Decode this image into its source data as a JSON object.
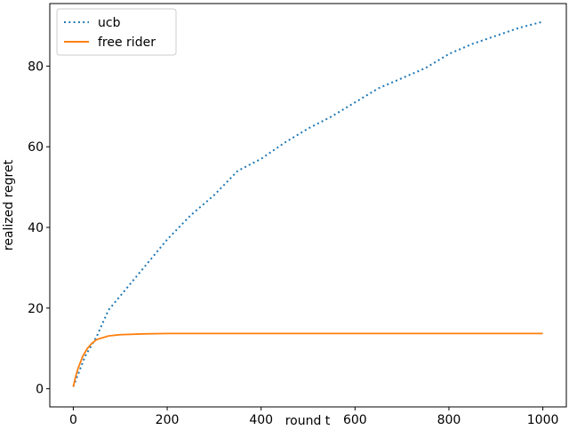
{
  "chart_data": {
    "type": "line",
    "xlabel": "round t",
    "ylabel": "realized regret",
    "xlim": [
      -50,
      1050
    ],
    "ylim": [
      -4.5,
      95.5
    ],
    "xticks": [
      0,
      200,
      400,
      600,
      800,
      1000
    ],
    "yticks": [
      0,
      20,
      40,
      60,
      80
    ],
    "legend": "upper left",
    "series": [
      {
        "name": "ucb",
        "color": "#1f77b4",
        "style": "dotted",
        "x": [
          0,
          25,
          50,
          75,
          100,
          150,
          200,
          250,
          300,
          350,
          400,
          450,
          500,
          550,
          600,
          650,
          700,
          750,
          800,
          850,
          900,
          950,
          1000
        ],
        "values": [
          0.5,
          8,
          13,
          19.5,
          23,
          30,
          37,
          43,
          48,
          54,
          57,
          61,
          64.5,
          67.5,
          71,
          74.5,
          77,
          79.5,
          83,
          85.5,
          87.5,
          89.5,
          91
        ]
      },
      {
        "name": "free rider",
        "color": "#ff7f0e",
        "style": "solid",
        "x": [
          0,
          5,
          10,
          20,
          30,
          40,
          50,
          75,
          100,
          150,
          200,
          400,
          600,
          800,
          1000
        ],
        "values": [
          0.5,
          3,
          5,
          8,
          10,
          11.3,
          12.2,
          13.1,
          13.4,
          13.6,
          13.7,
          13.7,
          13.7,
          13.7,
          13.7
        ]
      }
    ]
  }
}
